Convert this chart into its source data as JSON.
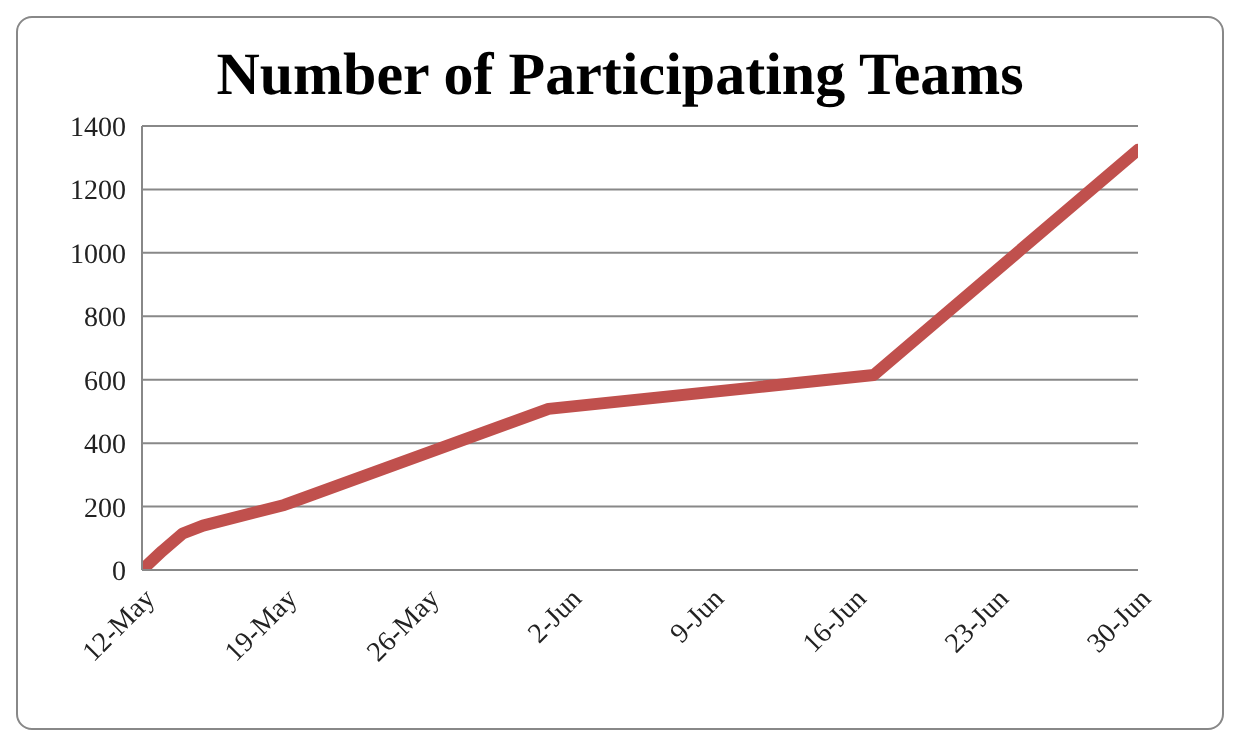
{
  "chart_data": {
    "type": "line",
    "title": "Number of Participating Teams",
    "x": [
      "--05-12",
      "--05-13",
      "--05-14",
      "--05-15",
      "--05-19",
      "--06-01",
      "--06-17",
      "--06-30"
    ],
    "series": [
      {
        "color": "#c0504d",
        "values": [
          0,
          60,
          115,
          140,
          205,
          508,
          615,
          1325
        ]
      }
    ],
    "xlim": [
      "--05-12",
      "--06-30"
    ],
    "xticks": [
      {
        "value": "--05-12",
        "label": "12-May"
      },
      {
        "value": "--05-19",
        "label": "19-May"
      },
      {
        "value": "--05-26",
        "label": "26-May"
      },
      {
        "value": "--06-02",
        "label": "2-Jun"
      },
      {
        "value": "--06-09",
        "label": "9-Jun"
      },
      {
        "value": "--06-16",
        "label": "16-Jun"
      },
      {
        "value": "--06-23",
        "label": "23-Jun"
      },
      {
        "value": "--06-30",
        "label": "30-Jun"
      }
    ],
    "ylim": [
      0,
      1400
    ],
    "yticks": [
      0,
      200,
      400,
      600,
      800,
      1000,
      1200,
      1400
    ],
    "grid": "y",
    "marker": "none",
    "line_style": "solid",
    "legend": false
  }
}
